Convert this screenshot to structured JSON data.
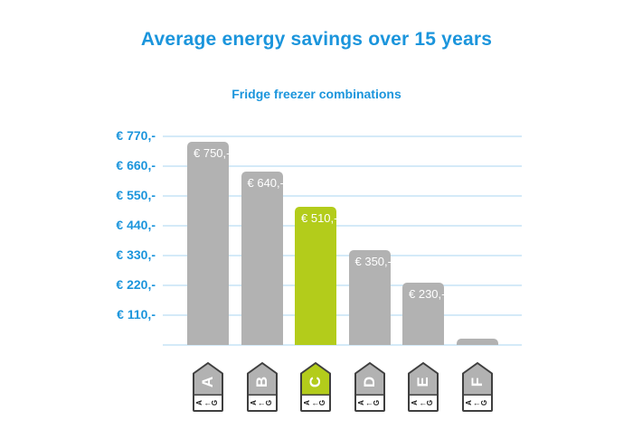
{
  "page": {
    "title": "Average energy savings over 15 years",
    "subtitle": "Fridge freezer combinations"
  },
  "chart_data": {
    "type": "bar",
    "title": "Average energy savings over 15 years",
    "subtitle": "Fridge freezer combinations",
    "categories": [
      "A",
      "B",
      "C",
      "D",
      "E",
      "F"
    ],
    "values": [
      750,
      640,
      510,
      350,
      230,
      20
    ],
    "bar_labels": [
      "€ 750,-",
      "€ 640,-",
      "€ 510,-",
      "€ 350,-",
      "€ 230,-",
      ""
    ],
    "highlighted_category": "C",
    "y_ticks": [
      {
        "value": 770,
        "label": "€ 770,-"
      },
      {
        "value": 660,
        "label": "€ 660,-"
      },
      {
        "value": 550,
        "label": "€ 550,-"
      },
      {
        "value": 440,
        "label": "€ 440,-"
      },
      {
        "value": 330,
        "label": "€ 330,-"
      },
      {
        "value": 220,
        "label": "€ 220,-"
      },
      {
        "value": 110,
        "label": "€ 110,-"
      }
    ],
    "ylim": [
      0,
      770
    ],
    "grid": true,
    "legend": "none",
    "currency": "EUR"
  },
  "energy_tag": {
    "scale_from": "A",
    "arrow": "←",
    "scale_to": "G"
  },
  "colors": {
    "accent_blue": "#1b95dc",
    "gridline_blue": "#d4eaf8",
    "bar_gray": "#b2b2b2",
    "bar_highlight_green": "#b3cc1b",
    "tag_border_dark": "#3f3f3f",
    "bar_label_white": "#ffffff"
  }
}
